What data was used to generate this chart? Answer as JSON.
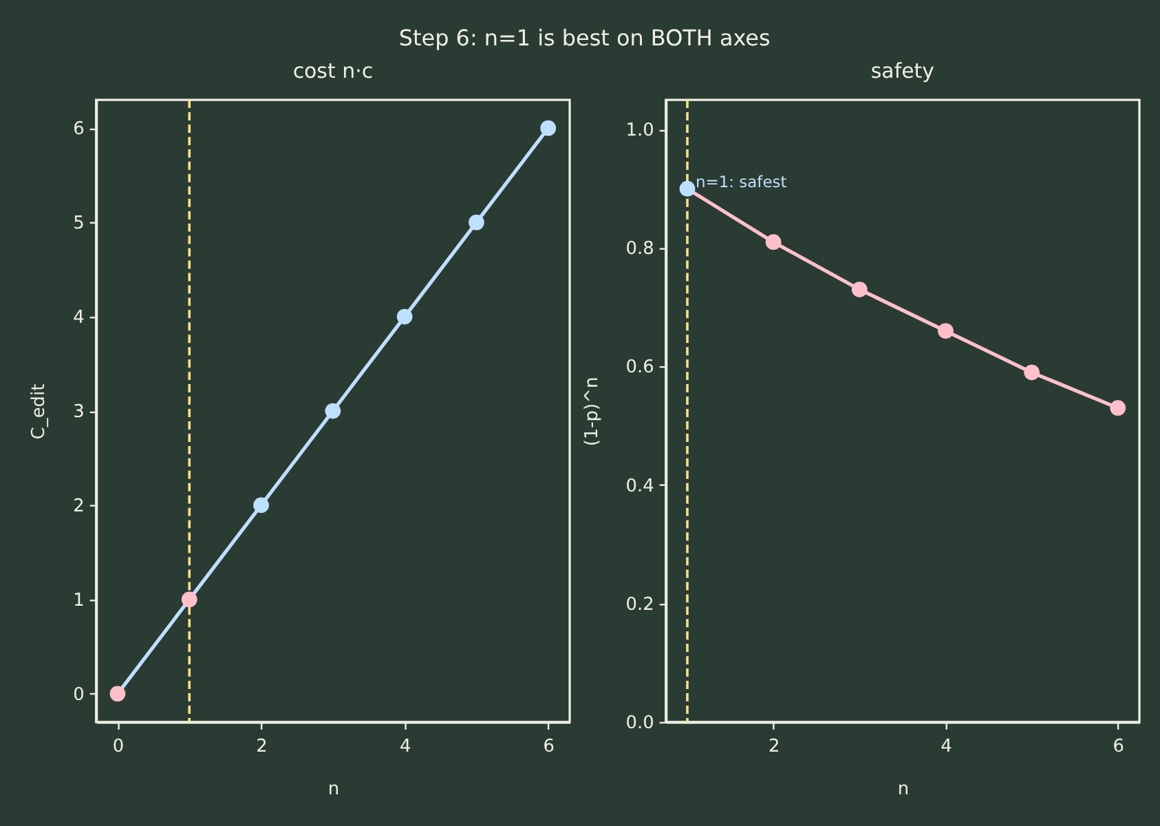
{
  "chart_data": [
    {
      "type": "other",
      "title": "Step 6: n=1 is best on BOTH axes"
    },
    {
      "type": "line",
      "title": "cost n·c",
      "xlabel": "n",
      "ylabel": "C_edit",
      "x": [
        0,
        1,
        2,
        3,
        4,
        5,
        6
      ],
      "series": [
        {
          "color": "#bfdfff",
          "colors": [
            "#ffc0cb",
            "#ffc0cb",
            "#bfdfff",
            "#bfdfff",
            "#bfdfff",
            "#bfdfff",
            "#bfdfff"
          ],
          "values": [
            0,
            1,
            2,
            3,
            4,
            5,
            6
          ]
        }
      ],
      "xlim": [
        -0.3,
        6.3
      ],
      "ylim": [
        -0.3,
        6.3
      ],
      "xticks": [
        0,
        2,
        4,
        6
      ],
      "yticks": [
        0,
        1,
        2,
        3,
        4,
        5,
        6
      ],
      "ref_lines": [
        {
          "axis": "x",
          "value": 1,
          "color": "#ffe08a",
          "line_style": "dashed"
        }
      ],
      "marker": "circle",
      "line_style": "solid"
    },
    {
      "type": "line",
      "title": "safety",
      "xlabel": "n",
      "ylabel": "(1-p)^n",
      "x": [
        1,
        2,
        3,
        4,
        5,
        6
      ],
      "series": [
        {
          "color": "#ffc0cb",
          "colors": [
            "#bfdfff",
            "#ffc0cb",
            "#ffc0cb",
            "#ffc0cb",
            "#ffc0cb",
            "#ffc0cb"
          ],
          "values": [
            0.9,
            0.81,
            0.73,
            0.66,
            0.59,
            0.53
          ]
        }
      ],
      "xlim": [
        0.75,
        6.25
      ],
      "ylim": [
        0,
        1.05
      ],
      "xticks": [
        2,
        4,
        6
      ],
      "yticks": [
        {
          "value": 0,
          "label": "0.0"
        },
        0.2,
        0.4,
        0.6,
        0.8,
        {
          "value": 1,
          "label": "1.0"
        }
      ],
      "ref_lines": [
        {
          "axis": "x",
          "value": 1,
          "color": "#ffe08a",
          "line_style": "dashed"
        }
      ],
      "annotations": [
        {
          "text": "n=1: safest",
          "x": 1,
          "y": 0.9
        }
      ],
      "marker": "circle",
      "line_style": "solid"
    }
  ]
}
